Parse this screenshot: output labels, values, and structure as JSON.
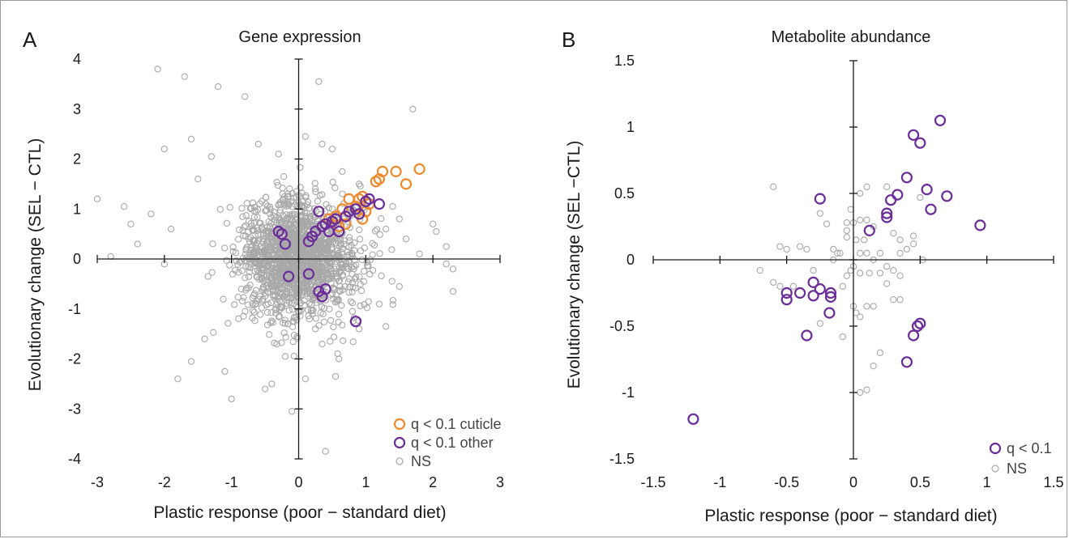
{
  "colors": {
    "cuticle": "#ef8a2c",
    "other": "#6b2d9a",
    "ns": "#a8a8a8",
    "axis": "#1a1a1a"
  },
  "chart_data": [
    {
      "type": "scatter",
      "panel_label": "A",
      "title": "Gene expression",
      "xlabel": "Plastic response (poor − standard diet)",
      "ylabel": "Evolutionary change (SEL − CTL)",
      "xlim": [
        -3,
        3
      ],
      "ylim": [
        -4,
        4
      ],
      "xticks": [
        -3,
        -2,
        -1,
        0,
        1,
        2,
        3
      ],
      "yticks": [
        -4,
        -3,
        -2,
        -1,
        0,
        1,
        2,
        3,
        4
      ],
      "xtick_labels": [
        "-3",
        "-2",
        "-1",
        "0",
        "1",
        "2",
        "3"
      ],
      "ytick_labels": [
        "-4",
        "-3",
        "-2",
        "-1",
        "0",
        "1",
        "2",
        "3",
        "4"
      ],
      "legend_position": "bottom-right",
      "series": [
        {
          "name": "q < 0.1 cuticle",
          "color": "#ef8a2c",
          "points": [
            [
              0.65,
              1.0
            ],
            [
              0.75,
              1.2
            ],
            [
              0.85,
              1.05
            ],
            [
              0.9,
              1.2
            ],
            [
              0.95,
              1.25
            ],
            [
              1.0,
              1.15
            ],
            [
              1.05,
              1.1
            ],
            [
              1.15,
              1.55
            ],
            [
              1.2,
              1.6
            ],
            [
              1.25,
              1.75
            ],
            [
              1.45,
              1.75
            ],
            [
              1.6,
              1.5
            ],
            [
              1.8,
              1.8
            ],
            [
              1.0,
              0.95
            ],
            [
              0.7,
              0.7
            ],
            [
              0.55,
              0.85
            ],
            [
              0.6,
              0.65
            ],
            [
              0.45,
              0.8
            ],
            [
              0.95,
              0.8
            ]
          ]
        },
        {
          "name": "q < 0.1 other",
          "color": "#6b2d9a",
          "points": [
            [
              -0.3,
              0.55
            ],
            [
              -0.25,
              0.5
            ],
            [
              -0.2,
              0.3
            ],
            [
              -0.15,
              -0.35
            ],
            [
              0.15,
              0.35
            ],
            [
              0.2,
              0.45
            ],
            [
              0.25,
              0.55
            ],
            [
              0.3,
              0.95
            ],
            [
              0.35,
              0.65
            ],
            [
              0.4,
              0.7
            ],
            [
              0.45,
              0.55
            ],
            [
              0.5,
              0.75
            ],
            [
              0.55,
              0.8
            ],
            [
              0.6,
              0.55
            ],
            [
              0.7,
              0.85
            ],
            [
              0.75,
              0.95
            ],
            [
              0.85,
              1.0
            ],
            [
              0.9,
              0.9
            ],
            [
              1.0,
              1.15
            ],
            [
              1.05,
              1.2
            ],
            [
              1.2,
              1.1
            ],
            [
              0.3,
              -0.65
            ],
            [
              0.35,
              -0.75
            ],
            [
              0.4,
              -0.6
            ],
            [
              0.15,
              -0.3
            ],
            [
              0.85,
              -1.25
            ]
          ]
        },
        {
          "name": "NS",
          "color": "#a8a8a8",
          "cloud": {
            "n": 1500,
            "sd_x": 0.45,
            "sd_y": 0.6,
            "seed": 7
          },
          "points": [
            [
              -2.1,
              3.8
            ],
            [
              -1.7,
              3.65
            ],
            [
              -1.2,
              3.45
            ],
            [
              -0.8,
              3.25
            ],
            [
              0.3,
              3.55
            ],
            [
              1.7,
              3.0
            ],
            [
              -3.0,
              1.2
            ],
            [
              -2.8,
              0.05
            ],
            [
              -2.6,
              1.05
            ],
            [
              -2.2,
              0.9
            ],
            [
              -1.5,
              1.6
            ],
            [
              -2.5,
              0.7
            ],
            [
              -0.6,
              2.3
            ],
            [
              -0.3,
              2.1
            ],
            [
              0.5,
              2.2
            ],
            [
              0.1,
              2.45
            ],
            [
              -1.6,
              2.4
            ],
            [
              -2.0,
              2.2
            ],
            [
              1.3,
              0.6
            ],
            [
              1.5,
              0.8
            ],
            [
              2.0,
              0.7
            ],
            [
              2.05,
              0.55
            ],
            [
              2.2,
              0.25
            ],
            [
              2.3,
              -0.2
            ],
            [
              2.3,
              -0.65
            ],
            [
              1.5,
              -0.55
            ],
            [
              1.2,
              -0.9
            ],
            [
              1.3,
              -1.35
            ],
            [
              0.9,
              -1.4
            ],
            [
              0.6,
              -2.0
            ],
            [
              0.55,
              -2.35
            ],
            [
              0.4,
              -3.85
            ],
            [
              -0.1,
              -3.05
            ],
            [
              -0.4,
              -2.5
            ],
            [
              -1.0,
              -2.8
            ],
            [
              -1.6,
              -2.05
            ],
            [
              -1.8,
              -2.4
            ],
            [
              -1.4,
              -1.6
            ],
            [
              -1.1,
              -2.25
            ],
            [
              -0.5,
              -2.6
            ],
            [
              -0.2,
              -1.95
            ],
            [
              0.25,
              -1.4
            ],
            [
              0.35,
              -1.7
            ],
            [
              0.1,
              -2.4
            ],
            [
              1.8,
              0.1
            ],
            [
              2.2,
              -0.1
            ],
            [
              1.4,
              1.05
            ],
            [
              1.6,
              0.4
            ],
            [
              -2.4,
              0.3
            ],
            [
              -2.0,
              -0.1
            ],
            [
              -1.9,
              0.6
            ],
            [
              -1.3,
              2.05
            ],
            [
              0.65,
              1.75
            ],
            [
              0.9,
              1.5
            ],
            [
              0.35,
              2.3
            ]
          ]
        }
      ]
    },
    {
      "type": "scatter",
      "panel_label": "B",
      "title": "Metabolite abundance",
      "xlabel": "Plastic response (poor − standard diet)",
      "ylabel": "Evolutionary change (SEL −CTL)",
      "xlim": [
        -1.5,
        1.5
      ],
      "ylim": [
        -1.5,
        1.5
      ],
      "xticks": [
        -1.5,
        -1,
        -0.5,
        0,
        0.5,
        1,
        1.5
      ],
      "yticks": [
        -1.5,
        -1,
        -0.5,
        0,
        0.5,
        1,
        1.5
      ],
      "xtick_labels": [
        "-1.5",
        "-1",
        "-0.5",
        "0",
        "0.5",
        "1",
        "1.5"
      ],
      "ytick_labels": [
        "-1.5",
        "-1",
        "-0.5",
        "0",
        "0.5",
        "1",
        "1.5"
      ],
      "legend_position": "bottom-right",
      "series": [
        {
          "name": "q < 0.1",
          "color": "#6b2d9a",
          "points": [
            [
              -1.2,
              -1.2
            ],
            [
              -0.5,
              -0.3
            ],
            [
              -0.5,
              -0.25
            ],
            [
              -0.4,
              -0.25
            ],
            [
              -0.35,
              -0.57
            ],
            [
              -0.3,
              -0.17
            ],
            [
              -0.25,
              -0.22
            ],
            [
              -0.3,
              -0.27
            ],
            [
              -0.25,
              0.46
            ],
            [
              -0.17,
              -0.25
            ],
            [
              -0.17,
              -0.28
            ],
            [
              -0.18,
              -0.4
            ],
            [
              0.12,
              0.22
            ],
            [
              0.25,
              0.32
            ],
            [
              0.25,
              0.35
            ],
            [
              0.28,
              0.45
            ],
            [
              0.33,
              0.49
            ],
            [
              0.4,
              0.62
            ],
            [
              0.45,
              0.94
            ],
            [
              0.5,
              0.88
            ],
            [
              0.55,
              0.53
            ],
            [
              0.58,
              0.38
            ],
            [
              0.65,
              1.05
            ],
            [
              0.7,
              0.48
            ],
            [
              0.95,
              0.26
            ],
            [
              0.4,
              -0.77
            ],
            [
              0.45,
              -0.57
            ],
            [
              0.48,
              -0.5
            ],
            [
              0.5,
              -0.48
            ]
          ]
        },
        {
          "name": "NS",
          "color": "#a8a8a8",
          "points": [
            [
              -0.6,
              0.55
            ],
            [
              -0.55,
              0.1
            ],
            [
              -0.5,
              0.08
            ],
            [
              -0.6,
              -0.17
            ],
            [
              -0.55,
              -0.2
            ],
            [
              -0.7,
              -0.08
            ],
            [
              -0.45,
              -0.2
            ],
            [
              -0.35,
              0.08
            ],
            [
              -0.3,
              -0.08
            ],
            [
              -0.25,
              -0.48
            ],
            [
              -0.2,
              0.27
            ],
            [
              -0.25,
              0.35
            ],
            [
              -0.1,
              0.05
            ],
            [
              -0.15,
              0.0
            ],
            [
              -0.12,
              0.05
            ],
            [
              -0.05,
              0.17
            ],
            [
              -0.05,
              0.22
            ],
            [
              0.0,
              0.28
            ],
            [
              0.05,
              0.3
            ],
            [
              0.05,
              0.05
            ],
            [
              -0.02,
              -0.08
            ],
            [
              0.0,
              -0.05
            ],
            [
              0.05,
              -0.1
            ],
            [
              -0.05,
              -0.12
            ],
            [
              0.02,
              -0.4
            ],
            [
              0.05,
              -0.43
            ],
            [
              0.05,
              0.5
            ],
            [
              0.1,
              0.55
            ],
            [
              0.1,
              0.3
            ],
            [
              0.15,
              0.25
            ],
            [
              0.2,
              0.05
            ],
            [
              0.25,
              -0.05
            ],
            [
              0.3,
              -0.08
            ],
            [
              0.35,
              0.05
            ],
            [
              0.35,
              -0.12
            ],
            [
              0.4,
              0.08
            ],
            [
              0.25,
              -0.18
            ],
            [
              0.15,
              -0.35
            ],
            [
              0.1,
              -0.35
            ],
            [
              0.2,
              -0.7
            ],
            [
              0.15,
              -0.8
            ],
            [
              0.1,
              -0.98
            ],
            [
              0.05,
              -1.0
            ],
            [
              0.3,
              -0.3
            ],
            [
              0.35,
              -0.3
            ],
            [
              0.45,
              0.12
            ],
            [
              0.45,
              0.18
            ],
            [
              0.52,
              0.0
            ],
            [
              0.5,
              0.47
            ],
            [
              0.1,
              0.05
            ],
            [
              0.12,
              -0.1
            ],
            [
              -0.05,
              0.28
            ],
            [
              -0.02,
              0.38
            ],
            [
              -0.08,
              -0.2
            ],
            [
              -0.08,
              -0.58
            ],
            [
              0.08,
              0.15
            ],
            [
              0.3,
              0.2
            ],
            [
              0.35,
              0.15
            ],
            [
              -0.15,
              0.08
            ],
            [
              -0.4,
              0.1
            ],
            [
              0.2,
              -0.1
            ],
            [
              0.25,
              0.55
            ],
            [
              0.0,
              -0.35
            ],
            [
              0.15,
              0.0
            ],
            [
              0.02,
              0.15
            ]
          ]
        }
      ]
    }
  ]
}
